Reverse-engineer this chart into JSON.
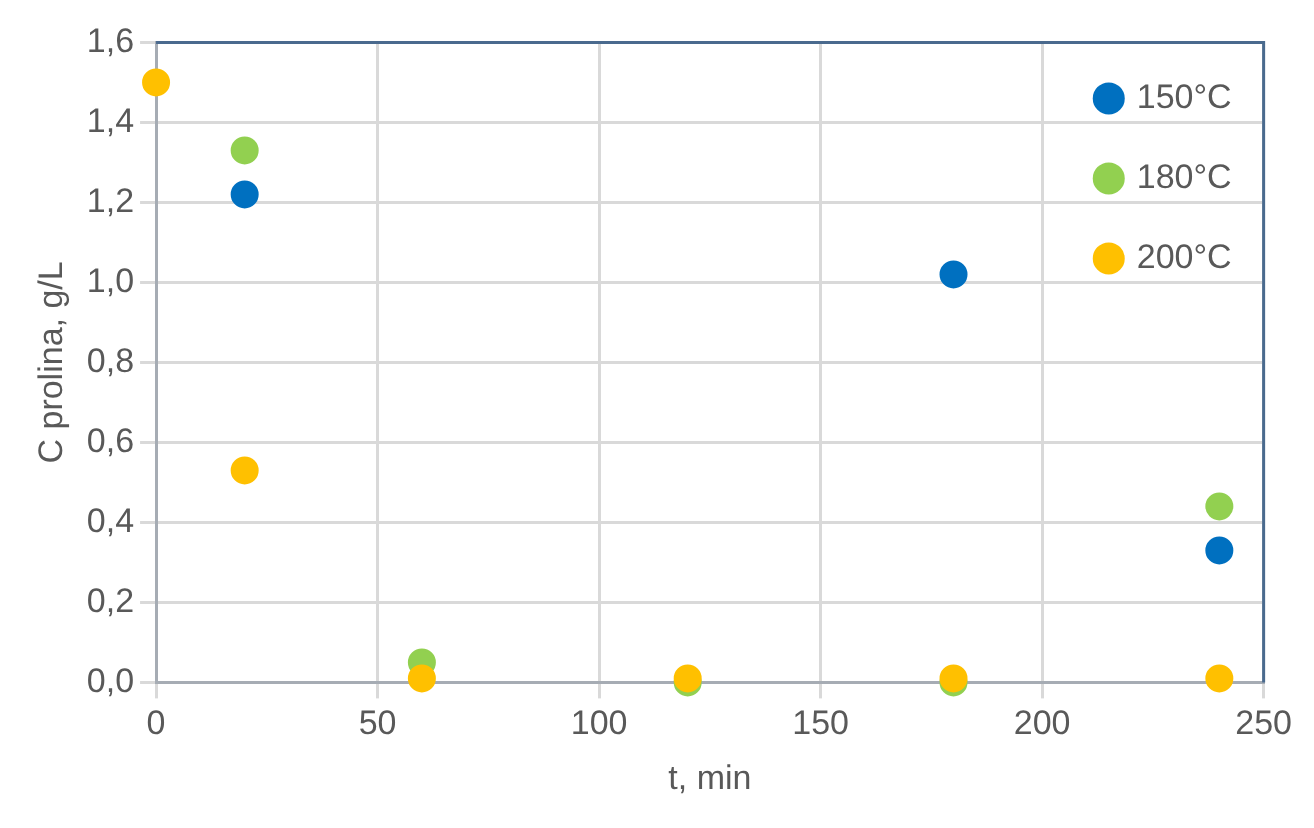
{
  "chart_data": {
    "type": "scatter",
    "xlabel": "t, min",
    "ylabel": "C prolina, g/L",
    "x": [
      0,
      20,
      60,
      120,
      180,
      240
    ],
    "series": [
      {
        "name": "150°C",
        "color": "#0070c0",
        "values": [
          null,
          1.22,
          null,
          null,
          1.02,
          0.33
        ]
      },
      {
        "name": "180°C",
        "color": "#92d050",
        "values": [
          null,
          1.33,
          0.05,
          0.0,
          0.0,
          0.44
        ]
      },
      {
        "name": "200°C",
        "color": "#ffc000",
        "values": [
          1.5,
          0.53,
          0.01,
          0.01,
          0.01,
          0.01
        ]
      }
    ],
    "xlim": [
      0,
      250
    ],
    "xticks": [
      0,
      50,
      100,
      150,
      200,
      250
    ],
    "ylim": [
      0,
      1.6
    ],
    "yticks": [
      {
        "value": 0,
        "label": "0,0"
      },
      {
        "value": 0.2,
        "label": "0,2"
      },
      {
        "value": 0.4,
        "label": "0,4"
      },
      {
        "value": 0.6,
        "label": "0,6"
      },
      {
        "value": 0.8,
        "label": "0,8"
      },
      {
        "value": 1,
        "label": "1,0"
      },
      {
        "value": 1.2,
        "label": "1,2"
      },
      {
        "value": 1.4,
        "label": "1,4"
      },
      {
        "value": 1.6,
        "label": "1,6"
      }
    ],
    "grid": true,
    "legend": "top right",
    "marker": "circle"
  }
}
